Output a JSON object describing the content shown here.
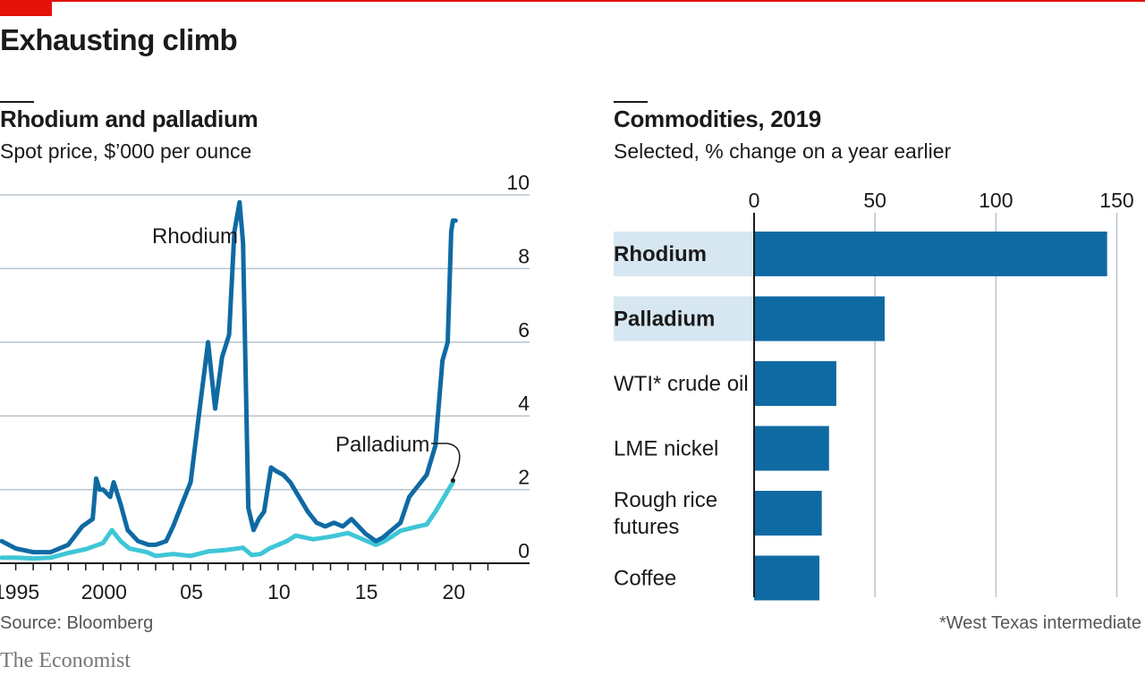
{
  "header": {
    "title": "Exhausting climb"
  },
  "footer": {
    "source": "Source: Bloomberg",
    "footnote": "*West Texas intermediate",
    "brand": "The Economist"
  },
  "colors": {
    "accent": "#e3120b",
    "rhodium": "#0f6aa3",
    "palladium": "#3ec6d6",
    "bar": "#0f6aa3",
    "highlight": "#d7e7f1"
  },
  "chart_data": [
    {
      "type": "line",
      "title": "Rhodium and palladium",
      "subtitle": "Spot price, $’000 per ounce",
      "xlim": [
        1994.1,
        2023.0
      ],
      "ylim": [
        0,
        10
      ],
      "y_ticks": [
        0,
        2,
        4,
        6,
        8,
        10
      ],
      "y_tick_labels": [
        "0",
        "2",
        "4",
        "6",
        "8",
        "10"
      ],
      "x_ticks": [
        1995,
        2000,
        2005,
        2010,
        2015,
        2020
      ],
      "x_tick_labels": [
        "1995",
        "2000",
        "05",
        "10",
        "15",
        "20"
      ],
      "grid": true,
      "annotations": [
        "Rhodium",
        "Palladium"
      ],
      "series": [
        {
          "name": "Rhodium",
          "x": [
            1994.2,
            1995.0,
            1996.0,
            1997.0,
            1998.0,
            1998.8,
            1999.4,
            1999.6,
            1999.8,
            2000.0,
            2000.4,
            2000.6,
            2001.0,
            2001.4,
            2002.0,
            2002.6,
            2003.0,
            2003.6,
            2004.0,
            2004.5,
            2005.0,
            2005.6,
            2006.0,
            2006.4,
            2006.8,
            2007.2,
            2007.5,
            2007.8,
            2008.0,
            2008.3,
            2008.6,
            2008.9,
            2009.2,
            2009.6,
            2009.9,
            2010.3,
            2010.7,
            2011.2,
            2011.7,
            2012.2,
            2012.7,
            2013.2,
            2013.7,
            2014.2,
            2014.6,
            2015.0,
            2015.6,
            2016.0,
            2016.5,
            2017.0,
            2017.5,
            2018.0,
            2018.5,
            2019.0,
            2019.4,
            2019.7,
            2019.9,
            2020.0,
            2020.15
          ],
          "y": [
            0.6,
            0.4,
            0.3,
            0.3,
            0.5,
            1.0,
            1.2,
            2.3,
            2.0,
            2.0,
            1.8,
            2.2,
            1.6,
            0.9,
            0.6,
            0.5,
            0.5,
            0.6,
            1.0,
            1.6,
            2.2,
            4.5,
            6.0,
            4.2,
            5.6,
            6.2,
            9.0,
            9.8,
            8.7,
            1.5,
            0.9,
            1.2,
            1.4,
            2.6,
            2.5,
            2.4,
            2.2,
            1.8,
            1.4,
            1.1,
            1.0,
            1.1,
            1.0,
            1.2,
            1.0,
            0.8,
            0.6,
            0.7,
            0.9,
            1.1,
            1.8,
            2.1,
            2.4,
            3.2,
            5.5,
            6.0,
            9.0,
            9.3,
            9.3
          ]
        },
        {
          "name": "Palladium",
          "x": [
            1994.2,
            1995.0,
            1996.0,
            1997.0,
            1998.0,
            1999.0,
            2000.0,
            2000.5,
            2001.0,
            2001.5,
            2002.0,
            2002.5,
            2003.0,
            2004.0,
            2005.0,
            2006.0,
            2007.0,
            2008.0,
            2008.5,
            2009.0,
            2009.5,
            2010.0,
            2010.5,
            2011.0,
            2012.0,
            2013.0,
            2014.0,
            2015.0,
            2015.6,
            2016.0,
            2016.5,
            2017.0,
            2018.0,
            2018.5,
            2019.0,
            2019.5,
            2020.0
          ],
          "y": [
            0.15,
            0.15,
            0.13,
            0.15,
            0.28,
            0.38,
            0.55,
            0.9,
            0.6,
            0.4,
            0.35,
            0.3,
            0.2,
            0.25,
            0.2,
            0.32,
            0.36,
            0.42,
            0.22,
            0.25,
            0.4,
            0.5,
            0.6,
            0.75,
            0.65,
            0.72,
            0.82,
            0.62,
            0.5,
            0.58,
            0.72,
            0.88,
            1.0,
            1.05,
            1.4,
            1.8,
            2.2
          ]
        }
      ]
    },
    {
      "type": "bar",
      "orientation": "horizontal",
      "title": "Commodities, 2019",
      "subtitle": "Selected, % change on a year earlier",
      "categories": [
        "Rhodium",
        "Palladium",
        "WTI* crude oil",
        "LME nickel",
        "Rough rice futures",
        "Coffee"
      ],
      "category_lines": [
        [
          "Rhodium"
        ],
        [
          "Palladium"
        ],
        [
          "WTI* crude oil"
        ],
        [
          "LME nickel"
        ],
        [
          "Rough rice",
          "futures"
        ],
        [
          "Coffee"
        ]
      ],
      "highlighted": [
        "Rhodium",
        "Palladium"
      ],
      "values": [
        146,
        54,
        34,
        31,
        28,
        27
      ],
      "xlim": [
        0,
        155
      ],
      "x_ticks": [
        0,
        50,
        100,
        150
      ],
      "x_tick_labels": [
        "0",
        "50",
        "100",
        "150"
      ],
      "grid": true
    }
  ]
}
